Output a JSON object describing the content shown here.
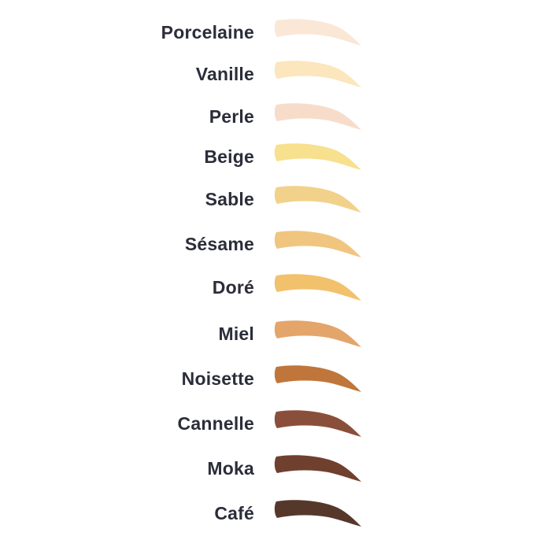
{
  "shades": [
    {
      "name": "Porcelaine",
      "color": "#fbe7d6"
    },
    {
      "name": "Vanille",
      "color": "#fbe6bd"
    },
    {
      "name": "Perle",
      "color": "#f8dcca"
    },
    {
      "name": "Beige",
      "color": "#f7e08e"
    },
    {
      "name": "Sable",
      "color": "#f2d18a"
    },
    {
      "name": "Sésame",
      "color": "#f0c580"
    },
    {
      "name": "Doré",
      "color": "#f2c16c"
    },
    {
      "name": "Miel",
      "color": "#e4a56a"
    },
    {
      "name": "Noisette",
      "color": "#c0763b"
    },
    {
      "name": "Cannelle",
      "color": "#8a4f3a"
    },
    {
      "name": "Moka",
      "color": "#70402e"
    },
    {
      "name": "Café",
      "color": "#56382b"
    }
  ]
}
